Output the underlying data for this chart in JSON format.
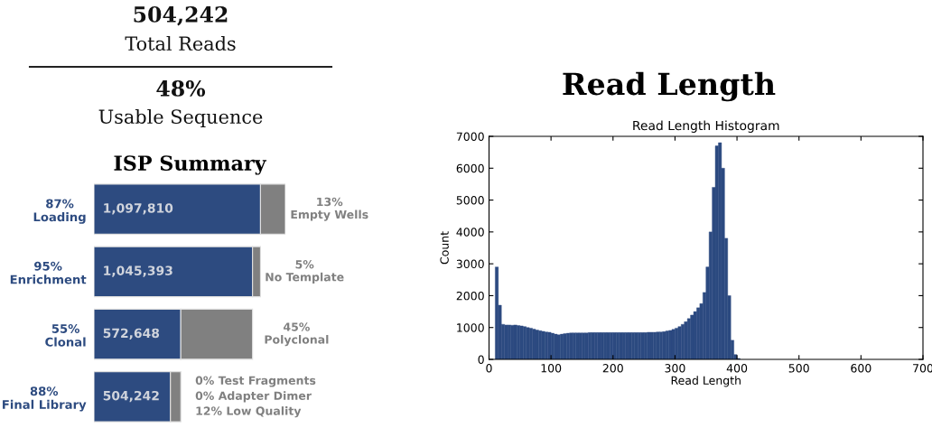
{
  "chart_data": [
    {
      "type": "other",
      "annotations": [
        "504,242",
        "Total Reads",
        "48%",
        "Usable Sequence"
      ]
    },
    {
      "type": "bar",
      "title": "ISP Summary",
      "orientation": "horizontal",
      "stacked": true,
      "annotations": [
        "13%\nEmpty Wells",
        "5%\nNo Template",
        "45%\nPolyclonal",
        "0% Test Fragments\n0% Adapter Dimer\n12% Low Quality"
      ],
      "categories": [
        "87%\nLoading",
        "95%\nEnrichment",
        "55%\nClonal",
        "88%\nFinal Library"
      ],
      "series": [
        {
          "color": "#2d4b80",
          "values": [
            1097810,
            1045393,
            572648,
            504242
          ],
          "value_labels": [
            "1,097,810",
            "1,045,393",
            "572,648",
            "504,242"
          ]
        },
        {
          "color": "#808080",
          "values": [
            164000,
            52417,
            472745,
            68406
          ]
        }
      ]
    },
    {
      "type": "histogram",
      "title": "Read Length",
      "subtitle": "Read Length Histogram",
      "xlabel": "Read Length",
      "ylabel": "Count",
      "color": "#2c4a80",
      "bins": [
        10,
        15,
        20,
        25,
        30,
        35,
        40,
        45,
        50,
        55,
        60,
        65,
        70,
        75,
        80,
        85,
        90,
        95,
        100,
        105,
        110,
        115,
        120,
        125,
        130,
        135,
        140,
        145,
        150,
        155,
        160,
        165,
        170,
        175,
        180,
        185,
        190,
        195,
        200,
        205,
        210,
        215,
        220,
        225,
        230,
        235,
        240,
        245,
        250,
        255,
        260,
        265,
        270,
        275,
        280,
        285,
        290,
        295,
        300,
        305,
        310,
        315,
        320,
        325,
        330,
        335,
        340,
        345,
        350,
        355,
        360,
        365,
        370,
        375,
        380,
        385,
        390,
        395,
        400,
        405
      ],
      "values": [
        2900,
        1700,
        1100,
        1080,
        1080,
        1070,
        1080,
        1060,
        1050,
        1030,
        1000,
        980,
        950,
        920,
        900,
        880,
        860,
        850,
        820,
        790,
        770,
        790,
        810,
        820,
        830,
        830,
        830,
        830,
        830,
        830,
        840,
        840,
        840,
        840,
        840,
        840,
        840,
        840,
        840,
        840,
        840,
        840,
        840,
        840,
        840,
        840,
        840,
        840,
        840,
        850,
        850,
        850,
        860,
        860,
        870,
        890,
        910,
        940,
        980,
        1030,
        1100,
        1180,
        1280,
        1390,
        1500,
        1620,
        1750,
        2100,
        2900,
        4000,
        5400,
        6700,
        6800,
        6000,
        3800,
        2000,
        600,
        150,
        30
      ],
      "xlim": [
        0,
        700
      ],
      "xticks": [
        0,
        100,
        200,
        300,
        400,
        500,
        600,
        700
      ],
      "ylim": [
        0,
        7000
      ],
      "yticks": [
        0,
        1000,
        2000,
        3000,
        4000,
        5000,
        6000,
        7000
      ],
      "grid": false
    }
  ]
}
